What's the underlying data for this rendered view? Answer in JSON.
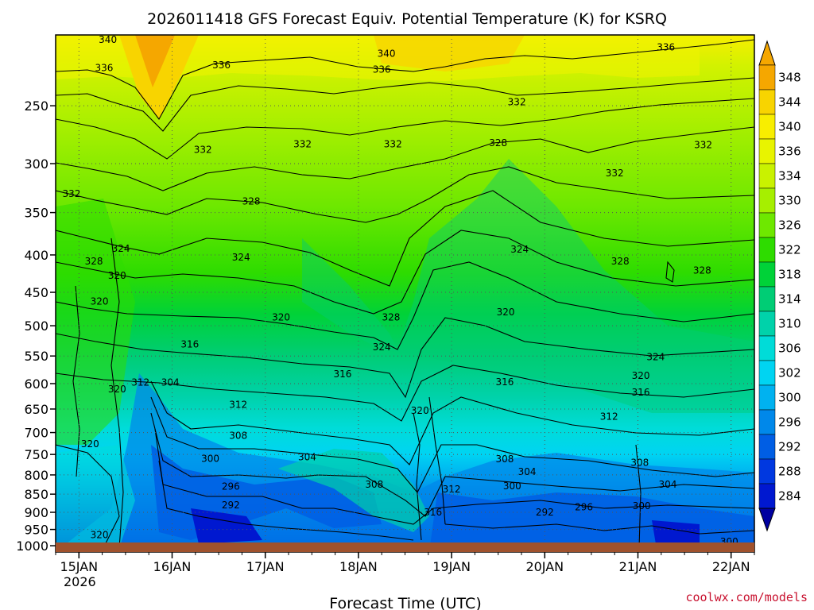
{
  "chart_data": {
    "type": "heatmap",
    "title": "2026011418 GFS Forecast Equiv. Potential Temperature (K) for KSRQ",
    "xlabel": "Forecast Time (UTC)",
    "ylabel": "",
    "x_ticks": [
      "15JAN",
      "16JAN",
      "17JAN",
      "18JAN",
      "19JAN",
      "20JAN",
      "21JAN",
      "22JAN"
    ],
    "x_tick_positions_days": [
      0.25,
      1.25,
      2.25,
      3.25,
      4.25,
      5.25,
      6.25,
      7.25
    ],
    "x_range_days": [
      0,
      7.5
    ],
    "x_sublabel": "2026",
    "y_ticks": [
      250,
      300,
      350,
      400,
      450,
      500,
      550,
      600,
      650,
      700,
      750,
      800,
      850,
      900,
      950,
      1000
    ],
    "y_range_hpa": [
      200,
      1020
    ],
    "y_scale": "log-pressure",
    "colorbar_levels": [
      348,
      344,
      340,
      336,
      334,
      330,
      326,
      322,
      318,
      314,
      310,
      306,
      302,
      300,
      296,
      292,
      288,
      284
    ],
    "colorbar_colors": [
      "#f5a700",
      "#f8d400",
      "#f8ee00",
      "#e8f400",
      "#c9f200",
      "#a6ef00",
      "#6ee800",
      "#2edc00",
      "#00d238",
      "#00cd75",
      "#00d2aa",
      "#00dcd8",
      "#00d4f2",
      "#00b2f0",
      "#0088ea",
      "#005ee4",
      "#0038e0",
      "#0018d0"
    ],
    "contour_labels": [
      {
        "x": 0.56,
        "p": 203,
        "v": "340"
      },
      {
        "x": 0.52,
        "p": 222,
        "v": "336"
      },
      {
        "x": 1.78,
        "p": 220,
        "v": "336"
      },
      {
        "x": 3.55,
        "p": 212,
        "v": "340"
      },
      {
        "x": 3.5,
        "p": 223,
        "v": "336"
      },
      {
        "x": 6.55,
        "p": 208,
        "v": "336"
      },
      {
        "x": 4.95,
        "p": 247,
        "v": "332"
      },
      {
        "x": 1.58,
        "p": 287,
        "v": "332"
      },
      {
        "x": 2.65,
        "p": 282,
        "v": "332"
      },
      {
        "x": 3.62,
        "p": 282,
        "v": "332"
      },
      {
        "x": 4.75,
        "p": 281,
        "v": "328"
      },
      {
        "x": 6.0,
        "p": 309,
        "v": "332"
      },
      {
        "x": 6.95,
        "p": 283,
        "v": "332"
      },
      {
        "x": 0.17,
        "p": 330,
        "v": "332"
      },
      {
        "x": 2.1,
        "p": 338,
        "v": "328"
      },
      {
        "x": 0.7,
        "p": 392,
        "v": "324"
      },
      {
        "x": 0.41,
        "p": 408,
        "v": "328"
      },
      {
        "x": 0.66,
        "p": 427,
        "v": "320"
      },
      {
        "x": 1.99,
        "p": 403,
        "v": "324"
      },
      {
        "x": 4.98,
        "p": 393,
        "v": "324"
      },
      {
        "x": 6.06,
        "p": 408,
        "v": "328"
      },
      {
        "x": 6.94,
        "p": 420,
        "v": "328"
      },
      {
        "x": 0.47,
        "p": 463,
        "v": "320"
      },
      {
        "x": 2.42,
        "p": 487,
        "v": "320"
      },
      {
        "x": 3.6,
        "p": 487,
        "v": "328"
      },
      {
        "x": 4.83,
        "p": 479,
        "v": "320"
      },
      {
        "x": 1.44,
        "p": 530,
        "v": "316"
      },
      {
        "x": 3.5,
        "p": 535,
        "v": "324"
      },
      {
        "x": 6.44,
        "p": 552,
        "v": "324"
      },
      {
        "x": 3.08,
        "p": 582,
        "v": "316"
      },
      {
        "x": 4.82,
        "p": 597,
        "v": "316"
      },
      {
        "x": 6.28,
        "p": 585,
        "v": "320"
      },
      {
        "x": 6.28,
        "p": 617,
        "v": "316"
      },
      {
        "x": 0.66,
        "p": 611,
        "v": "320"
      },
      {
        "x": 0.91,
        "p": 598,
        "v": "312"
      },
      {
        "x": 1.23,
        "p": 598,
        "v": "304"
      },
      {
        "x": 1.96,
        "p": 641,
        "v": "312"
      },
      {
        "x": 3.91,
        "p": 653,
        "v": "320"
      },
      {
        "x": 5.94,
        "p": 666,
        "v": "312"
      },
      {
        "x": 1.96,
        "p": 707,
        "v": "308"
      },
      {
        "x": 0.37,
        "p": 726,
        "v": "320"
      },
      {
        "x": 1.66,
        "p": 760,
        "v": "300"
      },
      {
        "x": 2.7,
        "p": 756,
        "v": "304"
      },
      {
        "x": 4.82,
        "p": 761,
        "v": "308"
      },
      {
        "x": 5.06,
        "p": 792,
        "v": "304"
      },
      {
        "x": 6.27,
        "p": 770,
        "v": "308"
      },
      {
        "x": 3.42,
        "p": 825,
        "v": "308"
      },
      {
        "x": 6.57,
        "p": 825,
        "v": "304"
      },
      {
        "x": 1.88,
        "p": 830,
        "v": "296"
      },
      {
        "x": 4.25,
        "p": 837,
        "v": "312"
      },
      {
        "x": 4.9,
        "p": 829,
        "v": "300"
      },
      {
        "x": 1.88,
        "p": 880,
        "v": "292"
      },
      {
        "x": 5.67,
        "p": 885,
        "v": "296"
      },
      {
        "x": 6.29,
        "p": 882,
        "v": "300"
      },
      {
        "x": 5.25,
        "p": 900,
        "v": "292"
      },
      {
        "x": 4.05,
        "p": 900,
        "v": "316"
      },
      {
        "x": 0.47,
        "p": 967,
        "v": "320"
      },
      {
        "x": 7.23,
        "p": 987,
        "v": "300"
      }
    ]
  },
  "credit": "coolwx.com/models"
}
